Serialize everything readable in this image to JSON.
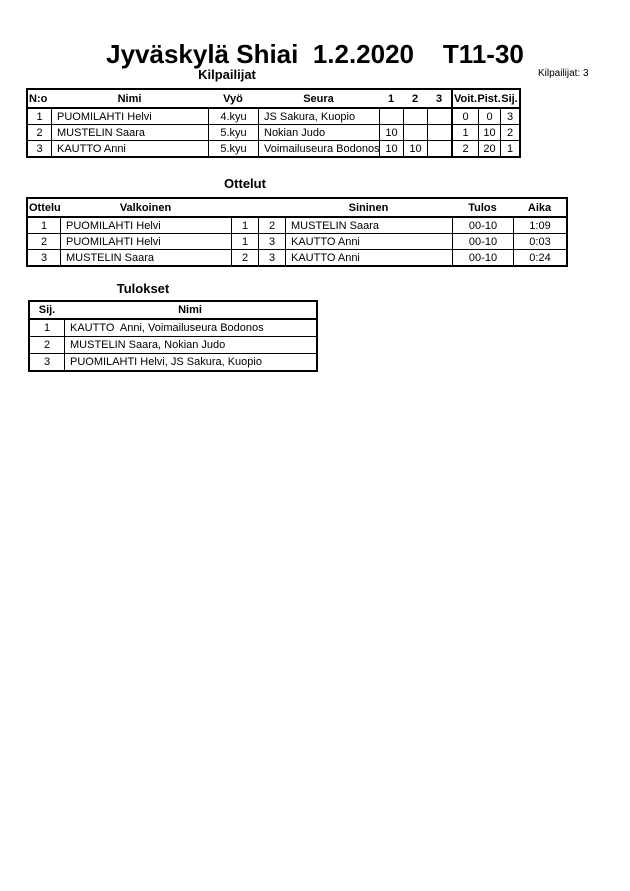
{
  "page": {
    "title": "Jyväskylä Shiai  1.2.2020    T11-30",
    "competitors_count_label": "Kilpailijat: 3"
  },
  "colors": {
    "text": "#000000",
    "border": "#000000",
    "background": "#ffffff"
  },
  "competitors": {
    "heading": "Kilpailijat",
    "headers": {
      "no": "N:o",
      "nimi": "Nimi",
      "vyo": "Vyö",
      "seura": "Seura",
      "m1": "1",
      "m2": "2",
      "m3": "3",
      "voit": "Voit.",
      "pist": "Pist.",
      "sij": "Sij."
    },
    "rows": [
      {
        "no": "1",
        "nimi": "PUOMILAHTI Helvi",
        "vyo": "4.kyu",
        "seura": "JS Sakura, Kuopio",
        "m1": "",
        "m2": "",
        "m3": "",
        "voit": "0",
        "pist": "0",
        "sij": "3"
      },
      {
        "no": "2",
        "nimi": "MUSTELIN Saara",
        "vyo": "5.kyu",
        "seura": "Nokian Judo",
        "m1": "10",
        "m2": "",
        "m3": "",
        "voit": "1",
        "pist": "10",
        "sij": "2"
      },
      {
        "no": "3",
        "nimi": "KAUTTO Anni",
        "vyo": "5.kyu",
        "seura": "Voimailuseura Bodonos",
        "m1": "10",
        "m2": "10",
        "m3": "",
        "voit": "2",
        "pist": "20",
        "sij": "1"
      }
    ]
  },
  "matches": {
    "heading": "Ottelut",
    "headers": {
      "ottelu": "Ottelu",
      "valkoinen": "Valkoinen",
      "wno": "",
      "bno": "",
      "sininen": "Sininen",
      "tulos": "Tulos",
      "aika": "Aika"
    },
    "rows": [
      {
        "no": "1",
        "valkoinen": "PUOMILAHTI Helvi",
        "wno": "1",
        "bno": "2",
        "sininen": "MUSTELIN Saara",
        "tulos": "00-10",
        "aika": "1:09"
      },
      {
        "no": "2",
        "valkoinen": "PUOMILAHTI Helvi",
        "wno": "1",
        "bno": "3",
        "sininen": "KAUTTO Anni",
        "tulos": "00-10",
        "aika": "0:03"
      },
      {
        "no": "3",
        "valkoinen": "MUSTELIN Saara",
        "wno": "2",
        "bno": "3",
        "sininen": "KAUTTO Anni",
        "tulos": "00-10",
        "aika": "0:24"
      }
    ]
  },
  "results": {
    "heading": "Tulokset",
    "headers": {
      "sij": "Sij.",
      "nimi": "Nimi"
    },
    "rows": [
      {
        "sij": "1",
        "nimi": "KAUTTO  Anni, Voimailuseura Bodonos"
      },
      {
        "sij": "2",
        "nimi": "MUSTELIN Saara, Nokian Judo"
      },
      {
        "sij": "3",
        "nimi": "PUOMILAHTI Helvi, JS Sakura, Kuopio"
      }
    ]
  }
}
